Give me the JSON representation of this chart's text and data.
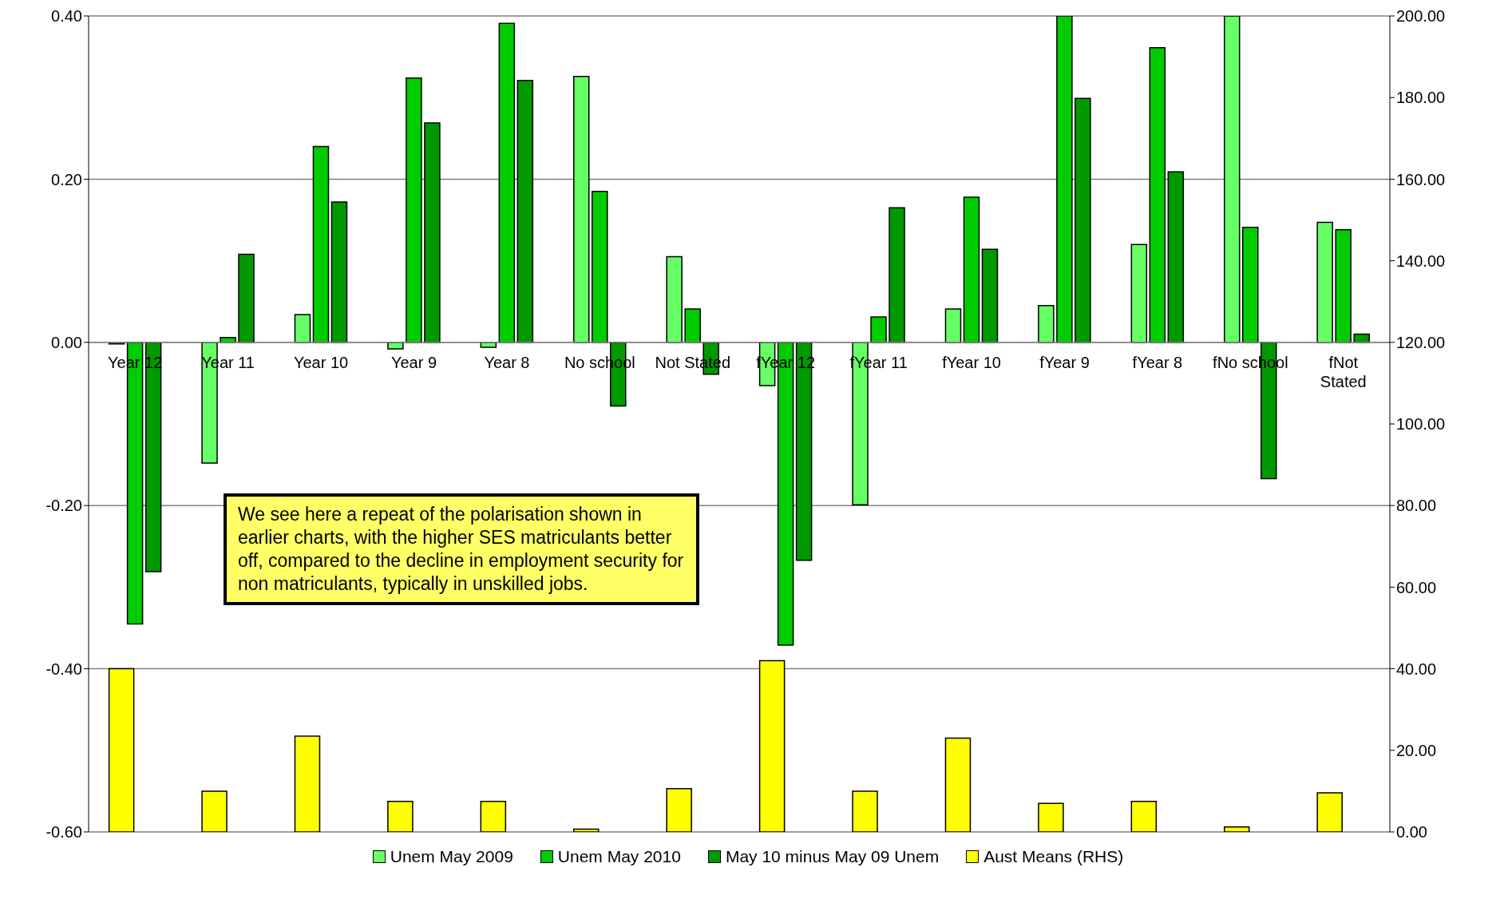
{
  "chart_data": {
    "type": "bar",
    "categories": [
      "Year 12",
      "Year 11",
      "Year 10",
      "Year 9",
      "Year 8",
      "No school",
      "Not Stated",
      "fYear 12",
      "fYear 11",
      "fYear 10",
      "fYear 9",
      "fYear 8",
      "fNo school",
      "fNot Stated"
    ],
    "series": [
      {
        "name": "Unem May 2009",
        "color": "#66ff66",
        "values": [
          -0.002,
          -0.148,
          0.034,
          -0.008,
          -0.006,
          0.326,
          0.105,
          -0.053,
          -0.199,
          0.041,
          0.045,
          0.12,
          0.4,
          0.147
        ]
      },
      {
        "name": "Unem May 2010",
        "color": "#00cc00",
        "values": [
          -0.345,
          0.006,
          0.24,
          0.324,
          0.391,
          0.185,
          0.041,
          -0.371,
          0.031,
          0.178,
          0.4,
          0.361,
          0.141,
          0.138
        ]
      },
      {
        "name": "May 10 minus May 09 Unem",
        "color": "#009900",
        "values": [
          -0.281,
          0.108,
          0.172,
          0.269,
          0.321,
          -0.078,
          -0.039,
          -0.267,
          0.165,
          0.114,
          0.299,
          0.209,
          -0.167,
          0.01
        ]
      },
      {
        "name": "Aust Means (RHS)",
        "color": "#ffff00",
        "axis": "y2",
        "values": [
          40,
          10,
          23.5,
          7.5,
          7.5,
          0.7,
          10.6,
          42,
          10,
          23,
          7,
          7.5,
          1.2,
          9.6
        ]
      }
    ],
    "ylim": [
      -0.6,
      0.4
    ],
    "yticks": [
      {
        "value": -0.6,
        "label": "-0.60"
      },
      {
        "value": -0.4,
        "label": "-0.40"
      },
      {
        "value": -0.2,
        "label": "-0.20"
      },
      {
        "value": 0,
        "label": "0.00"
      },
      {
        "value": 0.2,
        "label": "0.20"
      },
      {
        "value": 0.4,
        "label": "0.40"
      }
    ],
    "y2lim": [
      0,
      200
    ],
    "y2ticks": [
      {
        "value": 0,
        "label": "0.00"
      },
      {
        "value": 20,
        "label": "20.00"
      },
      {
        "value": 40,
        "label": "40.00"
      },
      {
        "value": 60,
        "label": "60.00"
      },
      {
        "value": 80,
        "label": "80.00"
      },
      {
        "value": 100,
        "label": "100.00"
      },
      {
        "value": 120,
        "label": "120.00"
      },
      {
        "value": 140,
        "label": "140.00"
      },
      {
        "value": 160,
        "label": "160.00"
      },
      {
        "value": 180,
        "label": "180.00"
      },
      {
        "value": 200,
        "label": "200.00"
      }
    ],
    "grid": "y",
    "legend": "bottom",
    "annotations": [
      "We see here a repeat of the polarisation shown in earlier charts, with the higher SES matriculants better off, compared to the decline in employment security for non matriculants, typically in unskilled jobs."
    ]
  }
}
